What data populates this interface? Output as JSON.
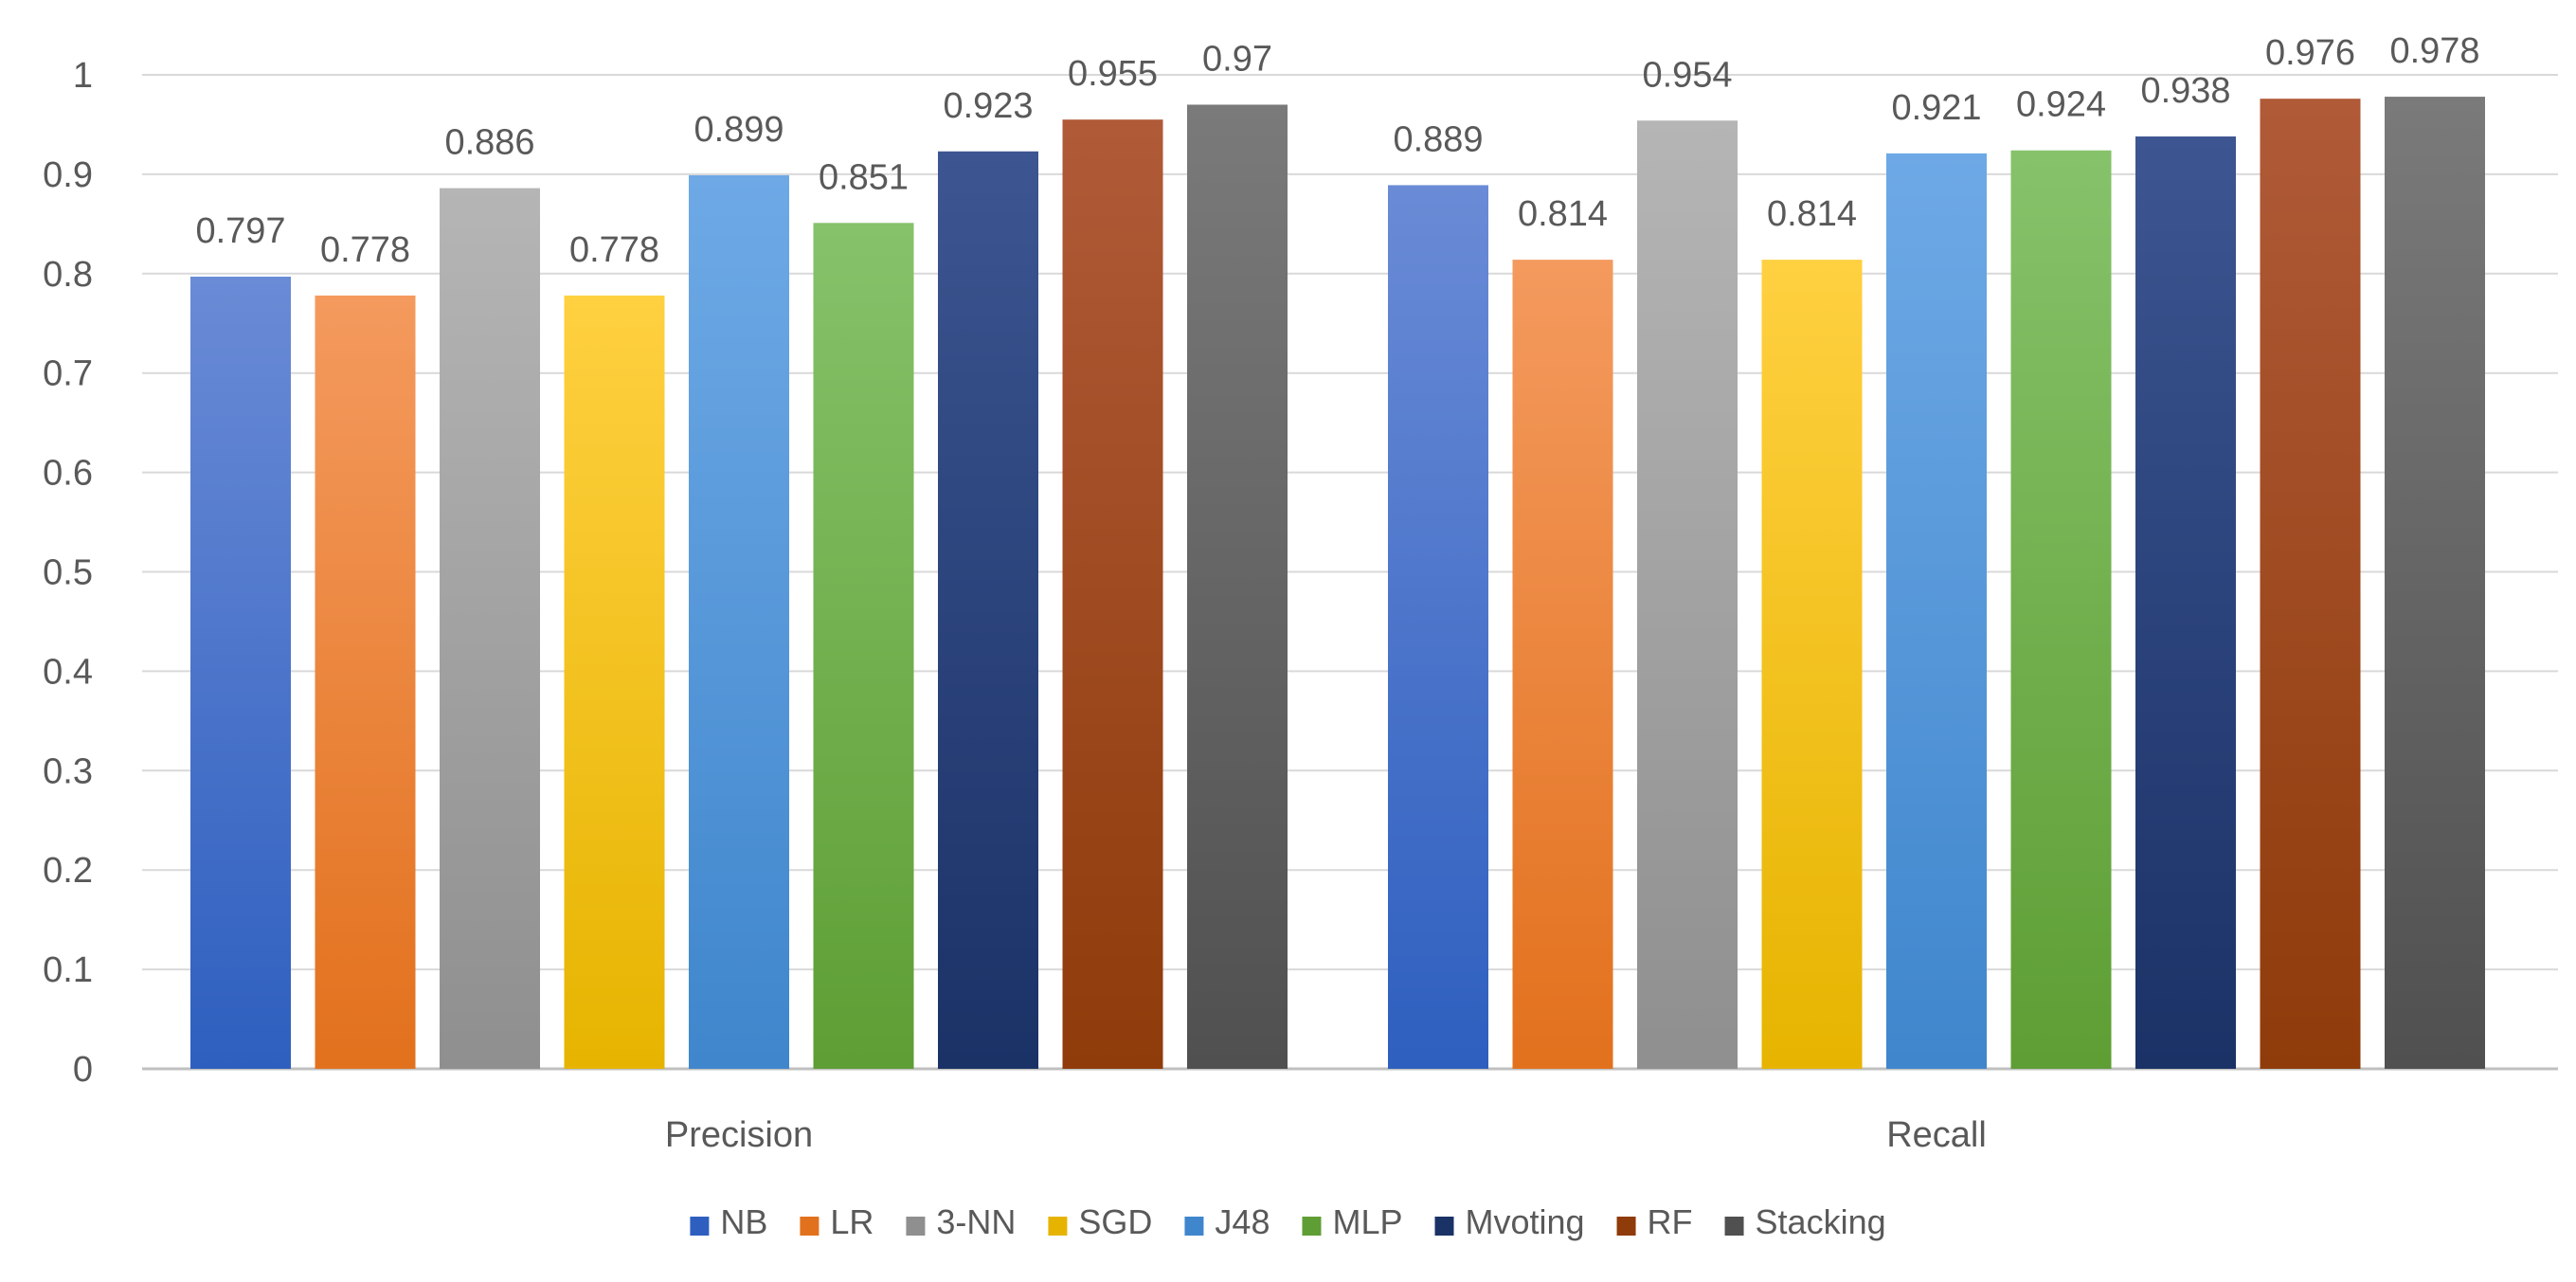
{
  "chart_data": {
    "type": "bar",
    "title": "",
    "xlabel": "",
    "ylabel": "",
    "categories": [
      "Precision",
      "Recall"
    ],
    "ylim": [
      0,
      1
    ],
    "yticks": [
      "0",
      "0.1",
      "0.2",
      "0.3",
      "0.4",
      "0.5",
      "0.6",
      "0.7",
      "0.8",
      "0.9",
      "1"
    ],
    "grid": true,
    "legend_position": "bottom",
    "series": [
      {
        "name": "NB",
        "color_top": "#6a8bd6",
        "color_bottom": "#2e5fbf",
        "values": [
          0.797,
          0.889
        ],
        "labels": [
          "0.797",
          "0.889"
        ]
      },
      {
        "name": "LR",
        "color_top": "#f49a5e",
        "color_bottom": "#e2711d",
        "values": [
          0.778,
          0.814
        ],
        "labels": [
          "0.778",
          "0.814"
        ]
      },
      {
        "name": "3-NN",
        "color_top": "#b5b5b5",
        "color_bottom": "#8f8f8f",
        "values": [
          0.886,
          0.954
        ],
        "labels": [
          "0.886",
          "0.954"
        ]
      },
      {
        "name": "SGD",
        "color_top": "#ffd040",
        "color_bottom": "#e6b400",
        "values": [
          0.778,
          0.814
        ],
        "labels": [
          "0.778",
          "0.814"
        ]
      },
      {
        "name": "J48",
        "color_top": "#6ea9e6",
        "color_bottom": "#3f86cc",
        "values": [
          0.899,
          0.921
        ],
        "labels": [
          "0.899",
          "0.921"
        ]
      },
      {
        "name": "MLP",
        "color_top": "#86c26a",
        "color_bottom": "#5e9e34",
        "values": [
          0.851,
          0.924
        ],
        "labels": [
          "0.851",
          "0.924"
        ]
      },
      {
        "name": "Mvoting",
        "color_top": "#3d5591",
        "color_bottom": "#1a3266",
        "values": [
          0.923,
          0.938
        ],
        "labels": [
          "0.923",
          "0.938"
        ]
      },
      {
        "name": "RF",
        "color_top": "#b05a38",
        "color_bottom": "#8f3b0a",
        "values": [
          0.955,
          0.976
        ],
        "labels": [
          "0.955",
          "0.976"
        ]
      },
      {
        "name": "Stacking",
        "color_top": "#7a7a7a",
        "color_bottom": "#505050",
        "values": [
          0.97,
          0.978
        ],
        "labels": [
          "0.97",
          "0.978"
        ]
      }
    ]
  }
}
